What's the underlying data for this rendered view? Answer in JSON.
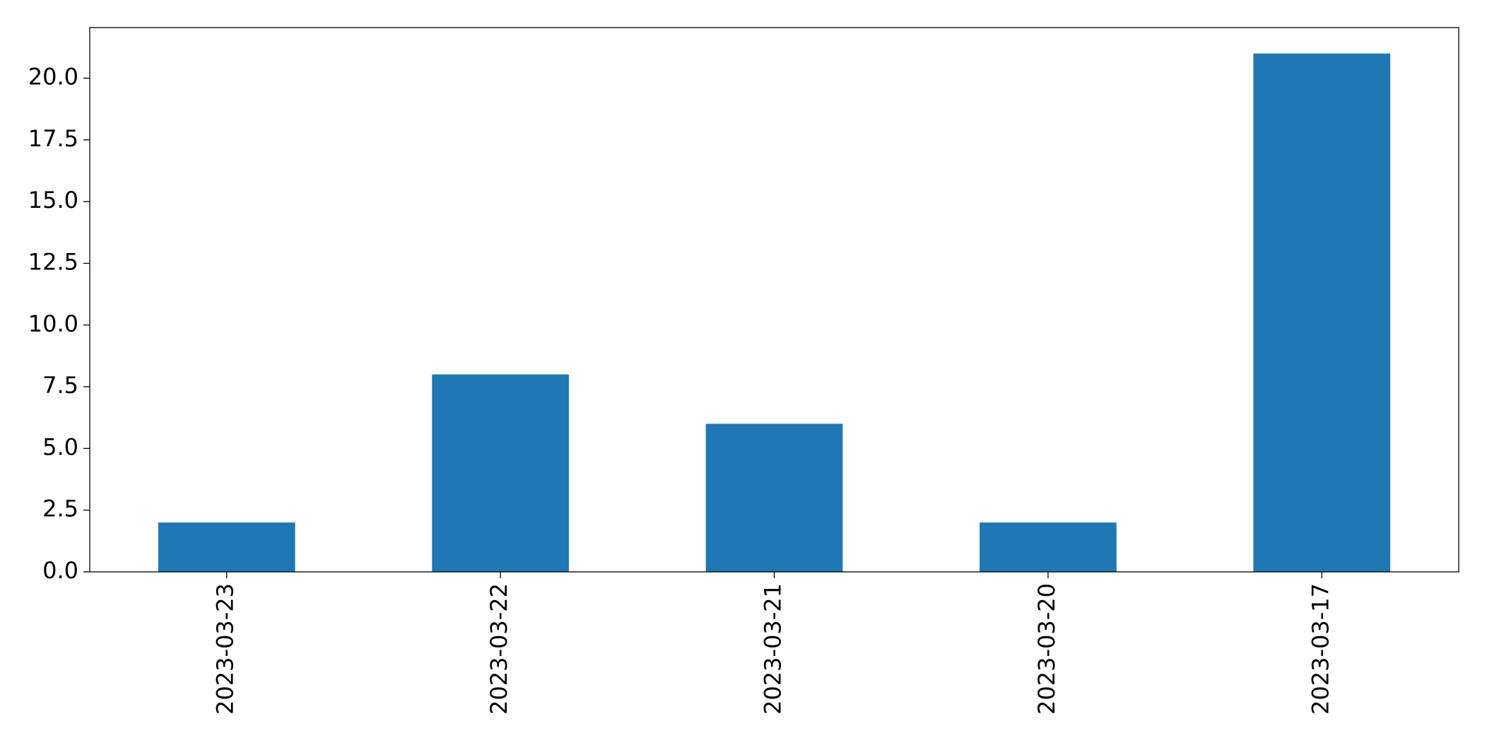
{
  "chart_data": {
    "type": "bar",
    "categories": [
      "2023-03-23",
      "2023-03-22",
      "2023-03-21",
      "2023-03-20",
      "2023-03-17"
    ],
    "values": [
      2,
      8,
      6,
      2,
      21
    ],
    "color": "#1f77b4",
    "ylim": [
      0,
      22.05
    ],
    "yticks": [
      {
        "value": 0,
        "label": "0.0"
      },
      2.5,
      {
        "value": 5,
        "label": "5.0"
      },
      7.5,
      {
        "value": 10,
        "label": "10.0"
      },
      12.5,
      {
        "value": 15,
        "label": "15.0"
      },
      17.5,
      {
        "value": 20,
        "label": "20.0"
      }
    ],
    "grid": false
  }
}
